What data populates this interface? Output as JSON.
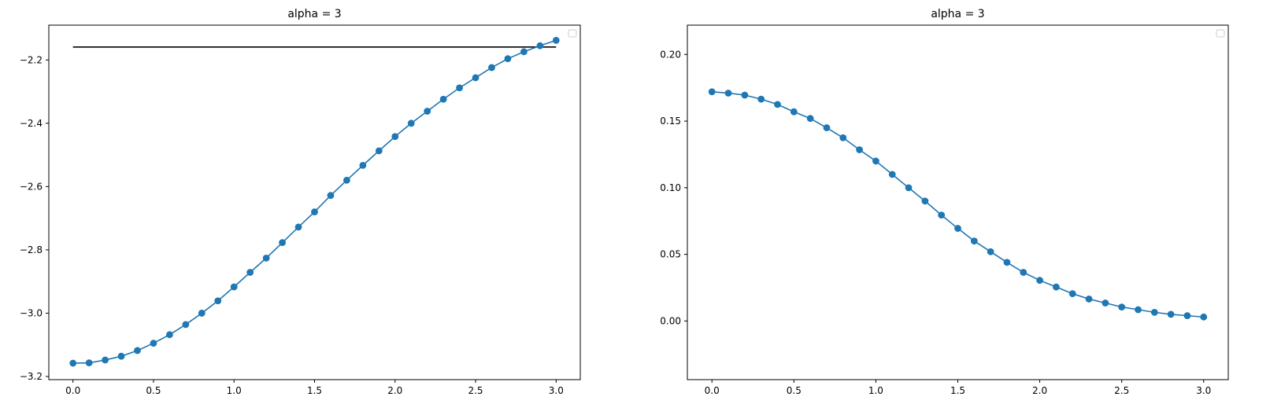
{
  "chart_data": [
    {
      "type": "line",
      "title": "alpha = 3",
      "xlabel": "",
      "ylabel": "",
      "xlim": [
        -0.15,
        3.15
      ],
      "ylim": [
        -3.21,
        -2.09
      ],
      "xticks": [
        0.0,
        0.5,
        1.0,
        1.5,
        2.0,
        2.5,
        3.0
      ],
      "xtick_labels": [
        "0.0",
        "0.5",
        "1.0",
        "1.5",
        "2.0",
        "2.5",
        "3.0"
      ],
      "yticks": [
        -3.2,
        -3.0,
        -2.8,
        -2.6,
        -2.4,
        -2.2
      ],
      "ytick_labels": [
        "−3.2",
        "−3.0",
        "−2.8",
        "−2.6",
        "−2.4",
        "−2.2"
      ],
      "grid": false,
      "legend": "top-right, empty",
      "series_color": "#1f77b4",
      "reference_color": "#000000",
      "series": [
        {
          "marker": "circle",
          "x": [
            0.0,
            0.1,
            0.2,
            0.3,
            0.4,
            0.5,
            0.6,
            0.7,
            0.8,
            0.9,
            1.0,
            1.1,
            1.2,
            1.3,
            1.4,
            1.5,
            1.6,
            1.7,
            1.8,
            1.9,
            2.0,
            2.1,
            2.2,
            2.3,
            2.4,
            2.5,
            2.6,
            2.7,
            2.8,
            2.9,
            3.0
          ],
          "values": [
            -3.158,
            -3.157,
            -3.148,
            -3.136,
            -3.118,
            -3.095,
            -3.068,
            -3.036,
            -3.0,
            -2.961,
            -2.917,
            -2.871,
            -2.826,
            -2.777,
            -2.728,
            -2.68,
            -2.628,
            -2.58,
            -2.533,
            -2.487,
            -2.442,
            -2.4,
            -2.362,
            -2.324,
            -2.288,
            -2.256,
            -2.224,
            -2.196,
            -2.174,
            -2.155,
            -2.138
          ]
        }
      ],
      "reference_line": {
        "x": [
          0.0,
          3.0
        ],
        "y": -2.159
      }
    },
    {
      "type": "line",
      "title": "alpha = 3",
      "xlabel": "",
      "ylabel": "",
      "xlim": [
        -0.15,
        3.15
      ],
      "ylim": [
        -0.044,
        0.222
      ],
      "xticks": [
        0.0,
        0.5,
        1.0,
        1.5,
        2.0,
        2.5,
        3.0
      ],
      "xtick_labels": [
        "0.0",
        "0.5",
        "1.0",
        "1.5",
        "2.0",
        "2.5",
        "3.0"
      ],
      "yticks": [
        0.0,
        0.05,
        0.1,
        0.15,
        0.2
      ],
      "ytick_labels": [
        "0.00",
        "0.05",
        "0.10",
        "0.15",
        "0.20"
      ],
      "grid": false,
      "legend": "top-right, empty",
      "series_color": "#1f77b4",
      "series": [
        {
          "marker": "circle",
          "x": [
            0.0,
            0.1,
            0.2,
            0.3,
            0.4,
            0.5,
            0.6,
            0.7,
            0.8,
            0.9,
            1.0,
            1.1,
            1.2,
            1.3,
            1.4,
            1.5,
            1.6,
            1.7,
            1.8,
            1.9,
            2.0,
            2.1,
            2.2,
            2.3,
            2.4,
            2.5,
            2.6,
            2.7,
            2.8,
            2.9,
            3.0
          ],
          "values": [
            0.172,
            0.171,
            0.1695,
            0.1665,
            0.1625,
            0.157,
            0.152,
            0.145,
            0.1375,
            0.1285,
            0.12,
            0.11,
            0.1,
            0.09,
            0.0795,
            0.0695,
            0.06,
            0.052,
            0.044,
            0.0365,
            0.0305,
            0.0255,
            0.0205,
            0.0165,
            0.0135,
            0.0105,
            0.0085,
            0.0065,
            0.005,
            0.004,
            0.003
          ]
        }
      ]
    }
  ]
}
